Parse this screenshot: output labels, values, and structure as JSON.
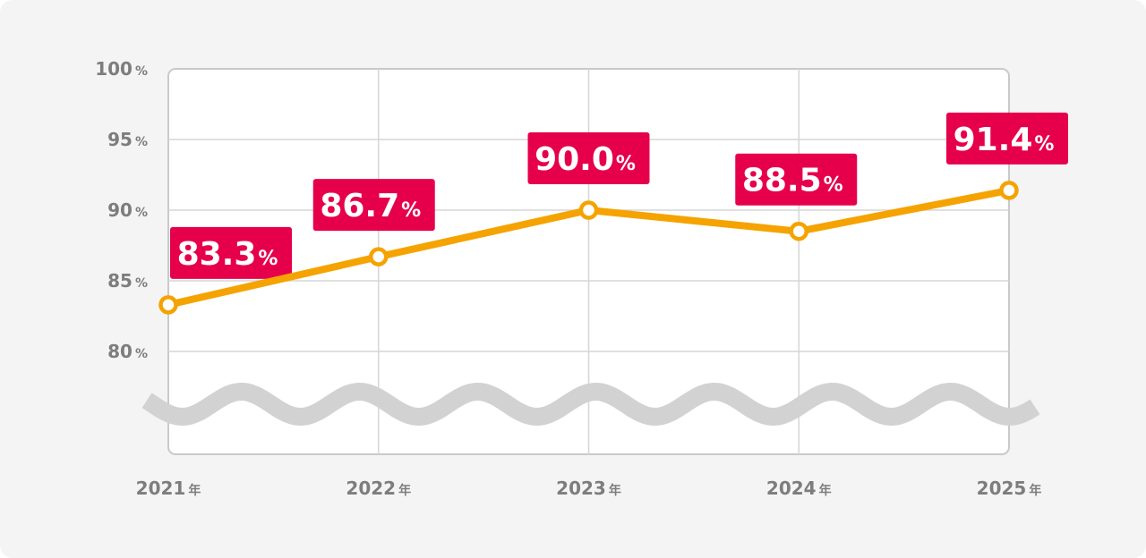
{
  "colors": {
    "background": "#f4f4f4",
    "plot_background": "#ffffff",
    "grid": "#d6d6d6",
    "line": "#f5a300",
    "marker_fill": "#ffffff",
    "label_bg": "#e6004c",
    "label_text": "#ffffff",
    "break_mark": "#d2d2d2",
    "tick_text": "#7d7d7d"
  },
  "chart_data": {
    "type": "line",
    "title": "",
    "xlabel": "",
    "ylabel": "",
    "categories": [
      "2021年",
      "2022年",
      "2023年",
      "2024年",
      "2025年"
    ],
    "series": [
      {
        "values": [
          83.3,
          86.7,
          90.0,
          88.5,
          91.4
        ]
      }
    ],
    "data_labels": [
      "83.3%",
      "86.7%",
      "90.0%",
      "88.5%",
      "91.4%"
    ],
    "y_ticks": [
      "80%",
      "85%",
      "90%",
      "95%",
      "100%"
    ],
    "y_tick_values": [
      80,
      85,
      90,
      95,
      100
    ],
    "ylim": [
      80,
      100
    ],
    "axis_break": true,
    "grid": true,
    "legend": "none"
  }
}
